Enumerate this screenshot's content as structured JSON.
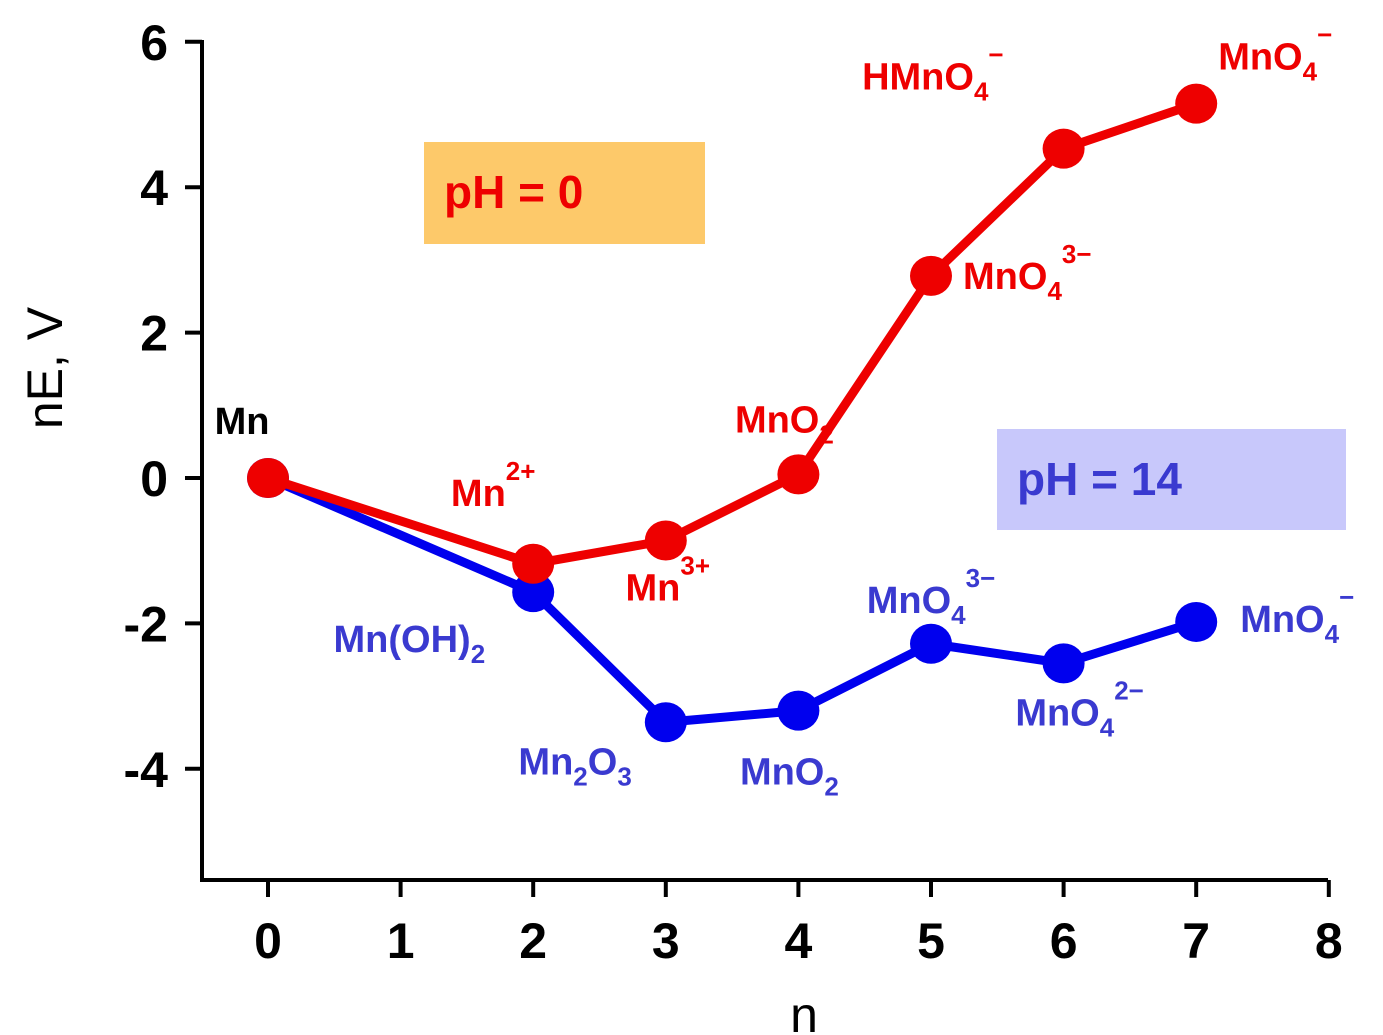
{
  "chart_data": {
    "type": "line",
    "xlabel": "n",
    "ylabel": "nE, V",
    "xlim": [
      -0.5,
      8
    ],
    "ylim": [
      -5.5,
      6
    ],
    "xticks": [
      0,
      1,
      2,
      3,
      4,
      5,
      6,
      7,
      8
    ],
    "xtick_labels": [
      "0",
      "1",
      "2",
      "3",
      "4",
      "5",
      "6",
      "7",
      "8"
    ],
    "yticks": [
      6,
      4,
      2,
      0,
      -2,
      -4
    ],
    "ytick_labels": [
      "6",
      "4",
      "2",
      "0",
      "-2",
      "-4"
    ],
    "grid": false,
    "series": [
      {
        "color": "#ee0000",
        "points": [
          {
            "x": 0,
            "y": 0,
            "label": {
              "main": "",
              "sub": "",
              "sup": ""
            }
          },
          {
            "x": 2,
            "y": -1.18,
            "label": {
              "main": "Mn",
              "sub": "",
              "sup": "2+"
            }
          },
          {
            "x": 3,
            "y": -0.86,
            "label": {
              "main": "Mn",
              "sub": "",
              "sup": "3+"
            }
          },
          {
            "x": 4,
            "y": 0.05,
            "label": {
              "main": "MnO",
              "sub": "2",
              "sup": ""
            }
          },
          {
            "x": 5,
            "y": 2.78,
            "label": {
              "main": "MnO",
              "sub": "4",
              "sup": "3−"
            }
          },
          {
            "x": 6,
            "y": 4.53,
            "label": {
              "main": "HMnO",
              "sub": "4",
              "sup": "−"
            }
          },
          {
            "x": 7,
            "y": 5.15,
            "label": {
              "main": "MnO",
              "sub": "4",
              "sup": "−"
            }
          }
        ]
      },
      {
        "color": "#0000ee",
        "points": [
          {
            "x": 0,
            "y": 0,
            "label": {
              "main": "",
              "sub": "",
              "sup": ""
            }
          },
          {
            "x": 2,
            "y": -1.57,
            "label": {
              "main": "Mn(OH)",
              "sub": "2",
              "sup": ""
            }
          },
          {
            "x": 3,
            "y": -3.36,
            "label": {
              "main": "Mn",
              "sub": "2",
              "sup": "",
              "tail": "O",
              "tail_sub": "3"
            }
          },
          {
            "x": 4,
            "y": -3.2,
            "label": {
              "main": "MnO",
              "sub": "2",
              "sup": ""
            }
          },
          {
            "x": 5,
            "y": -2.28,
            "label": {
              "main": "MnO",
              "sub": "4",
              "sup": "3−"
            }
          },
          {
            "x": 6,
            "y": -2.55,
            "label": {
              "main": "MnO",
              "sub": "4",
              "sup": "2−"
            }
          },
          {
            "x": 7,
            "y": -1.98,
            "label": {
              "main": "MnO",
              "sub": "4",
              "sup": "−"
            }
          }
        ]
      }
    ],
    "origin_label": "Mn",
    "annotations": [
      {
        "text": "pH = 0",
        "color": "#ee0000",
        "background": "#fdc96a"
      },
      {
        "text": "pH = 14",
        "color": "#3a3ad0",
        "background": "#c8c8fb"
      }
    ]
  },
  "colors": {
    "species_red": "#ee0000",
    "species_blue": "#3a3ad0",
    "origin_label": "#000000"
  }
}
